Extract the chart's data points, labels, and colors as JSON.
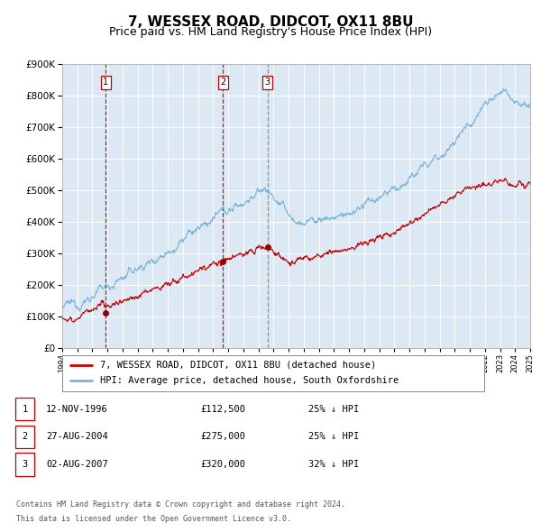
{
  "title": "7, WESSEX ROAD, DIDCOT, OX11 8BU",
  "subtitle": "Price paid vs. HM Land Registry's House Price Index (HPI)",
  "title_fontsize": 11,
  "subtitle_fontsize": 9,
  "bg_color": "#ffffff",
  "plot_bg_color": "#dce9f5",
  "grid_color": "#ffffff",
  "hpi_color": "#7ab4d8",
  "price_color": "#cc0000",
  "marker_color": "#990000",
  "xmin": 1994,
  "xmax": 2025,
  "ymin": 0,
  "ymax": 900000,
  "yticks": [
    0,
    100000,
    200000,
    300000,
    400000,
    500000,
    600000,
    700000,
    800000,
    900000
  ],
  "transactions": [
    {
      "num": 1,
      "date": "12-NOV-1996",
      "price": 112500,
      "pct": "25%",
      "year": 1996.87,
      "vline_style": "dashed_red"
    },
    {
      "num": 2,
      "date": "27-AUG-2004",
      "price": 275000,
      "pct": "25%",
      "year": 2004.65,
      "vline_style": "dashed_red"
    },
    {
      "num": 3,
      "date": "02-AUG-2007",
      "price": 320000,
      "pct": "32%",
      "year": 2007.59,
      "vline_style": "dashed_gray"
    }
  ],
  "legend_entries": [
    "7, WESSEX ROAD, DIDCOT, OX11 8BU (detached house)",
    "HPI: Average price, detached house, South Oxfordshire"
  ],
  "footer_line1": "Contains HM Land Registry data © Crown copyright and database right 2024.",
  "footer_line2": "This data is licensed under the Open Government Licence v3.0."
}
